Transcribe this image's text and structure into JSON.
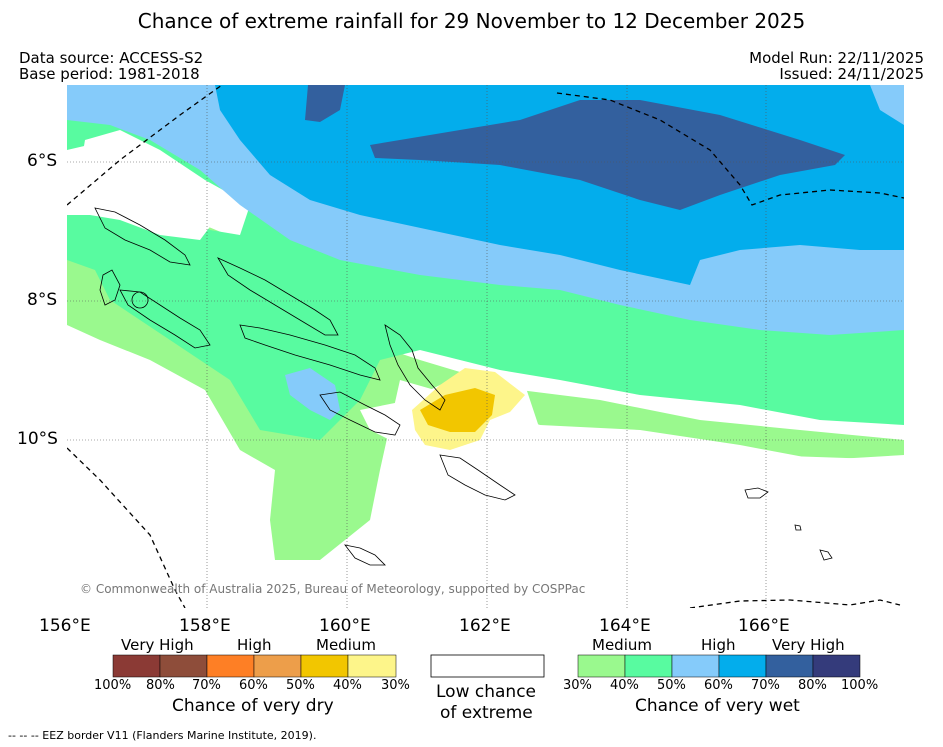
{
  "title": "Chance of extreme rainfall for 29 November to 12 December 2025",
  "meta": {
    "data_source": "Data source: ACCESS-S2",
    "base_period": "Base period: 1981-2018",
    "model_run": "Model Run: 22/11/2025",
    "issued": "Issued: 24/11/2025"
  },
  "map": {
    "lat_labels": [
      "6°S",
      "8°S",
      "10°S"
    ],
    "lon_labels": [
      "156°E",
      "158°E",
      "160°E",
      "162°E",
      "164°E",
      "166°E"
    ],
    "copyright": "© Commonwealth of Australia 2025, Bureau of Meteorology, supported by COSPPac"
  },
  "legend": {
    "dry": {
      "categories": [
        "Very High",
        "High",
        "Medium"
      ],
      "colors": [
        "#8b3a35",
        "#8e4d3a",
        "#fe7f25",
        "#ed9e4a",
        "#f2c600",
        "#fdf58a"
      ],
      "ticks": [
        "100%",
        "80%",
        "70%",
        "60%",
        "50%",
        "40%",
        "30%"
      ],
      "title": "Chance of very dry"
    },
    "low": {
      "title_line1": "Low chance",
      "title_line2": "of extreme"
    },
    "wet": {
      "categories": [
        "Medium",
        "High",
        "Very High"
      ],
      "colors": [
        "#9af98e",
        "#58fba0",
        "#85cbfa",
        "#03adec",
        "#33609e",
        "#343b7b"
      ],
      "ticks": [
        "30%",
        "40%",
        "50%",
        "60%",
        "70%",
        "80%",
        "100%"
      ],
      "title": "Chance of very wet"
    }
  },
  "footer": "--  --  -- EEZ border V11 (Flanders Marine Institute, 2019)."
}
